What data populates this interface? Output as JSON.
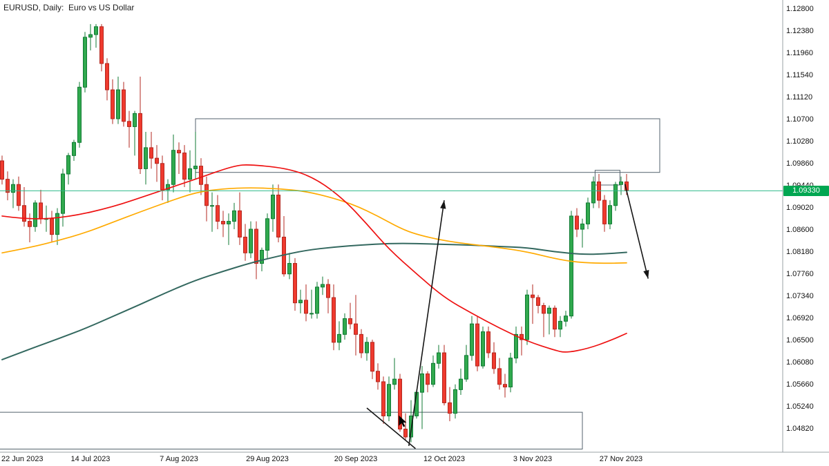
{
  "chart": {
    "title": "EURUSD, Daily:  Euro vs US Dollar",
    "symbol": "EURUSD",
    "timeframe": "Daily",
    "description": "Euro vs US Dollar",
    "current_price_label": "1.09330"
  },
  "chart_data": {
    "type": "candlestick",
    "title": "EURUSD, Daily: Euro vs US Dollar",
    "symbol": "EURUSD",
    "timeframe": "Daily",
    "current_price": 1.0933,
    "y_axis": {
      "ticks": [
        1.128,
        1.1238,
        1.1196,
        1.1154,
        1.1112,
        1.107,
        1.1028,
        1.0986,
        1.0944,
        1.0902,
        1.086,
        1.0818,
        1.0776,
        1.0734,
        1.0692,
        1.065,
        1.0608,
        1.0566,
        1.0524,
        1.0482
      ],
      "min": 1.041,
      "max": 1.1296,
      "decimals": 5
    },
    "x_axis": {
      "labels": [
        {
          "index": 0,
          "label": "22 Jun 2023"
        },
        {
          "index": 16,
          "label": "14 Jul 2023"
        },
        {
          "index": 32,
          "label": "7 Aug 2023"
        },
        {
          "index": 48,
          "label": "29 Aug 2023"
        },
        {
          "index": 64,
          "label": "20 Sep 2023"
        },
        {
          "index": 80,
          "label": "12 Oct 2023"
        },
        {
          "index": 96,
          "label": "3 Nov 2023"
        },
        {
          "index": 112,
          "label": "27 Nov 2023"
        }
      ]
    },
    "candles": [
      [
        1.099,
        1.1,
        1.0945,
        1.0955
      ],
      [
        1.0955,
        1.097,
        1.0915,
        1.093
      ],
      [
        1.093,
        1.0955,
        1.09,
        1.0945
      ],
      [
        1.0945,
        1.096,
        1.0895,
        1.0905
      ],
      [
        1.0905,
        1.094,
        1.0865,
        1.0875
      ],
      [
        1.0875,
        1.089,
        1.0835,
        1.0865
      ],
      [
        1.0865,
        1.0915,
        1.0855,
        1.091
      ],
      [
        1.091,
        1.0935,
        1.087,
        1.088
      ],
      [
        1.088,
        1.0905,
        1.0855,
        1.088
      ],
      [
        1.088,
        1.0895,
        1.0835,
        1.085
      ],
      [
        1.085,
        1.09,
        1.083,
        1.089
      ],
      [
        1.089,
        1.0975,
        1.0865,
        1.0965
      ],
      [
        1.0965,
        1.1005,
        1.0945,
        1.1
      ],
      [
        1.1,
        1.103,
        1.099,
        1.1025
      ],
      [
        1.1025,
        1.114,
        1.1015,
        1.113
      ],
      [
        1.113,
        1.1235,
        1.112,
        1.1225
      ],
      [
        1.1225,
        1.125,
        1.12,
        1.123
      ],
      [
        1.123,
        1.125,
        1.1205,
        1.1245
      ],
      [
        1.1245,
        1.125,
        1.116,
        1.1175
      ],
      [
        1.1175,
        1.1185,
        1.1105,
        1.1125
      ],
      [
        1.1125,
        1.1145,
        1.106,
        1.107
      ],
      [
        1.107,
        1.115,
        1.106,
        1.1125
      ],
      [
        1.1125,
        1.114,
        1.1055,
        1.1065
      ],
      [
        1.1065,
        1.1085,
        1.1015,
        1.1055
      ],
      [
        1.1055,
        1.1085,
        1.1,
        1.108
      ],
      [
        1.108,
        1.115,
        1.0965,
        1.0975
      ],
      [
        1.0975,
        1.1045,
        1.0945,
        1.1015
      ],
      [
        1.1015,
        1.1045,
        1.0975,
        1.0995
      ],
      [
        1.0995,
        1.102,
        1.095,
        1.0985
      ],
      [
        1.0985,
        1.1,
        1.0915,
        1.0935
      ],
      [
        1.0935,
        1.0955,
        1.091,
        1.0945
      ],
      [
        1.0945,
        1.104,
        1.093,
        1.101
      ],
      [
        1.101,
        1.1025,
        1.0965,
        1.1005
      ],
      [
        1.1005,
        1.102,
        1.094,
        1.0955
      ],
      [
        1.0955,
        1.101,
        1.093,
        1.0975
      ],
      [
        1.0975,
        1.1045,
        1.0955,
        1.098
      ],
      [
        1.098,
        1.0995,
        1.0925,
        1.0945
      ],
      [
        1.0945,
        1.096,
        1.0875,
        1.0905
      ],
      [
        1.0905,
        1.093,
        1.0855,
        1.0905
      ],
      [
        1.0905,
        1.0925,
        1.086,
        1.0875
      ],
      [
        1.0875,
        1.0895,
        1.0845,
        1.087
      ],
      [
        1.087,
        1.089,
        1.083,
        1.0875
      ],
      [
        1.0875,
        1.091,
        1.086,
        1.0895
      ],
      [
        1.0895,
        1.093,
        1.083,
        1.0845
      ],
      [
        1.0845,
        1.087,
        1.08,
        1.0815
      ],
      [
        1.0815,
        1.0875,
        1.0805,
        1.086
      ],
      [
        1.086,
        1.0875,
        1.0765,
        1.0795
      ],
      [
        1.0795,
        1.0825,
        1.078,
        1.082
      ],
      [
        1.082,
        1.089,
        1.0805,
        1.088
      ],
      [
        1.088,
        1.0945,
        1.0855,
        1.0925
      ],
      [
        1.0925,
        1.0945,
        1.0835,
        1.0845
      ],
      [
        1.0845,
        1.0885,
        1.077,
        1.0775
      ],
      [
        1.0775,
        1.0815,
        1.0765,
        1.0795
      ],
      [
        1.0795,
        1.0805,
        1.0705,
        1.072
      ],
      [
        1.072,
        1.0745,
        1.07,
        1.0725
      ],
      [
        1.0725,
        1.0755,
        1.0685,
        1.07
      ],
      [
        1.07,
        1.0745,
        1.069,
        1.07
      ],
      [
        1.07,
        1.076,
        1.069,
        1.075
      ],
      [
        1.075,
        1.077,
        1.0735,
        1.0755
      ],
      [
        1.0755,
        1.0765,
        1.07,
        1.073
      ],
      [
        1.073,
        1.0755,
        1.063,
        1.0645
      ],
      [
        1.0645,
        1.0685,
        1.063,
        1.066
      ],
      [
        1.066,
        1.07,
        1.065,
        1.069
      ],
      [
        1.069,
        1.072,
        1.067,
        1.068
      ],
      [
        1.068,
        1.0735,
        1.062,
        1.066
      ],
      [
        1.066,
        1.067,
        1.0615,
        1.0625
      ],
      [
        1.0625,
        1.0655,
        1.061,
        1.0645
      ],
      [
        1.0645,
        1.065,
        1.0575,
        1.059
      ],
      [
        1.059,
        1.0605,
        1.0555,
        1.057
      ],
      [
        1.057,
        1.058,
        1.049,
        1.0505
      ],
      [
        1.0505,
        1.058,
        1.0495,
        1.0565
      ],
      [
        1.0565,
        1.0615,
        1.0555,
        1.0575
      ],
      [
        1.0575,
        1.0585,
        1.0475,
        1.048
      ],
      [
        1.048,
        1.051,
        1.046,
        1.0465
      ],
      [
        1.0465,
        1.0535,
        1.0455,
        1.0505
      ],
      [
        1.0505,
        1.0555,
        1.05,
        1.055
      ],
      [
        1.055,
        1.06,
        1.048,
        1.0585
      ],
      [
        1.0585,
        1.059,
        1.055,
        1.0565
      ],
      [
        1.0565,
        1.062,
        1.056,
        1.0605
      ],
      [
        1.0605,
        1.064,
        1.0595,
        1.0625
      ],
      [
        1.0625,
        1.064,
        1.0525,
        1.053
      ],
      [
        1.053,
        1.056,
        1.0495,
        1.051
      ],
      [
        1.051,
        1.0565,
        1.05,
        1.0555
      ],
      [
        1.0555,
        1.0595,
        1.0545,
        1.0575
      ],
      [
        1.0575,
        1.064,
        1.057,
        1.062
      ],
      [
        1.062,
        1.0695,
        1.061,
        1.068
      ],
      [
        1.068,
        1.0695,
        1.059,
        1.06
      ],
      [
        1.06,
        1.0675,
        1.0595,
        1.0665
      ],
      [
        1.0665,
        1.0675,
        1.0615,
        1.0625
      ],
      [
        1.0625,
        1.0645,
        1.0585,
        1.0595
      ],
      [
        1.0595,
        1.0615,
        1.0555,
        1.0565
      ],
      [
        1.0565,
        1.0585,
        1.054,
        1.056
      ],
      [
        1.056,
        1.0625,
        1.055,
        1.0615
      ],
      [
        1.0615,
        1.0675,
        1.0605,
        1.066
      ],
      [
        1.066,
        1.0675,
        1.062,
        1.065
      ],
      [
        1.065,
        1.0745,
        1.064,
        1.0735
      ],
      [
        1.0735,
        1.0755,
        1.068,
        1.073
      ],
      [
        1.073,
        1.0735,
        1.07,
        1.0715
      ],
      [
        1.0715,
        1.072,
        1.0655,
        1.07
      ],
      [
        1.07,
        1.0715,
        1.066,
        1.071
      ],
      [
        1.071,
        1.0715,
        1.0655,
        1.067
      ],
      [
        1.067,
        1.0695,
        1.0655,
        1.0685
      ],
      [
        1.0685,
        1.0705,
        1.0675,
        1.0695
      ],
      [
        1.0695,
        1.0895,
        1.069,
        1.0885
      ],
      [
        1.0885,
        1.09,
        1.0845,
        1.086
      ],
      [
        1.086,
        1.088,
        1.0825,
        1.087
      ],
      [
        1.087,
        1.092,
        1.086,
        1.091
      ],
      [
        1.091,
        1.096,
        1.09,
        1.095
      ],
      [
        1.095,
        1.0965,
        1.09,
        1.0915
      ],
      [
        1.0915,
        1.0925,
        1.0855,
        1.087
      ],
      [
        1.087,
        1.0915,
        1.086,
        1.0905
      ],
      [
        1.0905,
        1.095,
        1.0895,
        1.0945
      ],
      [
        1.0945,
        1.096,
        1.0925,
        1.095
      ],
      [
        1.095,
        1.0965,
        1.0925,
        1.0933
      ]
    ],
    "series": [
      {
        "name": "ma-slow-teal",
        "color": "#33685f",
        "width": 2,
        "points": [
          [
            0,
            1.0612
          ],
          [
            5,
            1.0632
          ],
          [
            10,
            1.0651
          ],
          [
            15,
            1.0671
          ],
          [
            20,
            1.0694
          ],
          [
            25,
            1.0717
          ],
          [
            30,
            1.0741
          ],
          [
            35,
            1.0763
          ],
          [
            40,
            1.078
          ],
          [
            45,
            1.0796
          ],
          [
            50,
            1.0809
          ],
          [
            55,
            1.082
          ],
          [
            60,
            1.0826
          ],
          [
            65,
            1.083
          ],
          [
            70,
            1.0833
          ],
          [
            75,
            1.0833
          ],
          [
            80,
            1.0831
          ],
          [
            85,
            1.083
          ],
          [
            90,
            1.0827
          ],
          [
            95,
            1.0825
          ],
          [
            100,
            1.0817
          ],
          [
            105,
            1.0812
          ],
          [
            109,
            1.0813
          ],
          [
            113,
            1.0816
          ]
        ]
      },
      {
        "name": "ma-medium-orange",
        "color": "#ffaa00",
        "width": 1.7,
        "points": [
          [
            0,
            1.0815
          ],
          [
            5,
            1.0825
          ],
          [
            10,
            1.0838
          ],
          [
            15,
            1.0853
          ],
          [
            20,
            1.0873
          ],
          [
            25,
            1.0893
          ],
          [
            30,
            1.0912
          ],
          [
            35,
            1.093
          ],
          [
            40,
            1.0937
          ],
          [
            45,
            1.0939
          ],
          [
            50,
            1.0937
          ],
          [
            55,
            1.0932
          ],
          [
            60,
            1.0919
          ],
          [
            64,
            1.0905
          ],
          [
            68,
            1.0885
          ],
          [
            72,
            1.0862
          ],
          [
            75,
            1.085
          ],
          [
            80,
            1.0838
          ],
          [
            85,
            1.0831
          ],
          [
            90,
            1.0825
          ],
          [
            95,
            1.0817
          ],
          [
            100,
            1.0804
          ],
          [
            104,
            1.0797
          ],
          [
            109,
            1.0795
          ],
          [
            113,
            1.0796
          ]
        ]
      },
      {
        "name": "ma-fast-red",
        "color": "#ee1111",
        "width": 1.7,
        "points": [
          [
            0,
            1.0885
          ],
          [
            5,
            1.0878
          ],
          [
            12,
            1.0883
          ],
          [
            20,
            1.0902
          ],
          [
            27,
            1.0927
          ],
          [
            35,
            1.0955
          ],
          [
            42,
            1.0981
          ],
          [
            45,
            1.0983
          ],
          [
            52,
            1.0975
          ],
          [
            57,
            1.0955
          ],
          [
            62,
            1.0915
          ],
          [
            66,
            1.087
          ],
          [
            70,
            1.0822
          ],
          [
            75,
            1.0775
          ],
          [
            80,
            1.073
          ],
          [
            85,
            1.07
          ],
          [
            90,
            1.0672
          ],
          [
            95,
            1.0647
          ],
          [
            100,
            1.063
          ],
          [
            102,
            1.0625
          ],
          [
            106,
            1.0633
          ],
          [
            110,
            1.0648
          ],
          [
            113,
            1.0662
          ]
        ]
      }
    ],
    "annotations": {
      "rectangles": [
        {
          "name": "resistance-zone-rectangle",
          "i1": 35,
          "i2": 119,
          "p1": 1.107,
          "p2": 1.0968
        },
        {
          "name": "support-zone-rectangle",
          "i1": -0.5,
          "i2": 105,
          "p1": 1.0512,
          "p2": 1.0442
        },
        {
          "name": "breakout-rectangle",
          "i1": 107.3,
          "i2": 111.8,
          "p1": 1.0972,
          "p2": 1.0944
        }
      ],
      "arrows": [
        {
          "name": "bullish-projection-arrow",
          "i1": 73.6,
          "p1": 1.0448,
          "i2": 80,
          "p2": 1.0915
        },
        {
          "name": "bearish-projection-arrow",
          "i1": 112.7,
          "p1": 1.0946,
          "i2": 116.9,
          "p2": 1.0766
        }
      ],
      "trendlines": [
        {
          "name": "support-trendline",
          "i1": 66,
          "p1": 1.052,
          "i2": 74.8,
          "p2": 1.0443
        }
      ],
      "cursor": {
        "i": 71.8,
        "p": 1.0506
      }
    },
    "colors": {
      "bull": "#31a94e",
      "bull_border": "#0f7a33",
      "bear": "#ef3a2e",
      "bear_border": "#b3271f",
      "price_line": "#2eb98a",
      "badge_bg": "#00a651",
      "object": "#53626c",
      "arrow": "#151515",
      "axis_text": "#111111",
      "separator": "#9aa0a6"
    }
  }
}
